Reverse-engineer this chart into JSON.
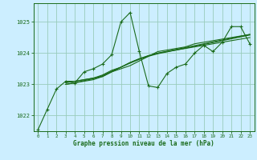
{
  "title": "Graphe pression niveau de la mer (hPa)",
  "bg_color": "#cceeff",
  "grid_color": "#99ccbb",
  "line_color": "#1a6b1a",
  "xlim": [
    -0.5,
    23.5
  ],
  "ylim": [
    1021.5,
    1025.6
  ],
  "yticks": [
    1022,
    1023,
    1024,
    1025
  ],
  "xticks": [
    0,
    1,
    2,
    3,
    4,
    5,
    6,
    7,
    8,
    9,
    10,
    11,
    12,
    13,
    14,
    15,
    16,
    17,
    18,
    19,
    20,
    21,
    22,
    23
  ],
  "series": [
    {
      "x": [
        0,
        1,
        2,
        3,
        4,
        5,
        6,
        7,
        8,
        9,
        10,
        11,
        12,
        13,
        14,
        15,
        16,
        17,
        18,
        19,
        20,
        21,
        22,
        23
      ],
      "y": [
        1021.55,
        1022.2,
        1022.85,
        1023.1,
        1023.05,
        1023.4,
        1023.5,
        1023.65,
        1023.95,
        1025.0,
        1025.3,
        1024.05,
        1022.95,
        1022.9,
        1023.35,
        1023.55,
        1023.65,
        1024.0,
        1024.25,
        1024.05,
        1024.35,
        1024.85,
        1024.85,
        1024.3
      ],
      "marker": true
    },
    {
      "x": [
        3,
        4,
        5,
        6,
        7,
        8,
        9,
        10,
        11,
        12,
        13,
        14,
        15,
        16,
        17,
        18,
        19,
        20,
        21,
        22,
        23
      ],
      "y": [
        1023.1,
        1023.1,
        1023.15,
        1023.2,
        1023.25,
        1023.4,
        1023.5,
        1023.6,
        1023.75,
        1023.9,
        1024.05,
        1024.1,
        1024.15,
        1024.2,
        1024.3,
        1024.35,
        1024.4,
        1024.45,
        1024.5,
        1024.55,
        1024.6
      ],
      "marker": false
    },
    {
      "x": [
        3,
        4,
        5,
        6,
        7,
        8,
        9,
        10,
        11,
        12,
        13,
        14,
        15,
        16,
        17,
        18,
        19,
        20,
        21,
        22,
        23
      ],
      "y": [
        1023.05,
        1023.1,
        1023.15,
        1023.2,
        1023.3,
        1023.45,
        1023.55,
        1023.7,
        1023.82,
        1023.92,
        1024.0,
        1024.05,
        1024.1,
        1024.15,
        1024.2,
        1024.25,
        1024.3,
        1024.35,
        1024.4,
        1024.45,
        1024.5
      ],
      "marker": false
    },
    {
      "x": [
        3,
        4,
        5,
        6,
        7,
        8,
        9,
        10,
        11,
        12,
        13,
        14,
        15,
        16,
        17,
        18,
        19,
        20,
        21,
        22,
        23
      ],
      "y": [
        1023.0,
        1023.05,
        1023.1,
        1023.15,
        1023.25,
        1023.4,
        1023.55,
        1023.7,
        1023.82,
        1023.92,
        1024.0,
        1024.06,
        1024.12,
        1024.18,
        1024.24,
        1024.3,
        1024.36,
        1024.42,
        1024.48,
        1024.54,
        1024.6
      ],
      "marker": false
    },
    {
      "x": [
        3,
        4,
        5,
        6,
        7,
        8,
        9,
        10,
        11,
        12,
        13,
        14,
        15,
        16,
        17,
        18,
        19,
        20,
        21,
        22,
        23
      ],
      "y": [
        1023.0,
        1023.05,
        1023.12,
        1023.18,
        1023.28,
        1023.42,
        1023.55,
        1023.68,
        1023.8,
        1023.9,
        1023.98,
        1024.04,
        1024.1,
        1024.16,
        1024.22,
        1024.28,
        1024.34,
        1024.4,
        1024.46,
        1024.52,
        1024.58
      ],
      "marker": false
    }
  ]
}
